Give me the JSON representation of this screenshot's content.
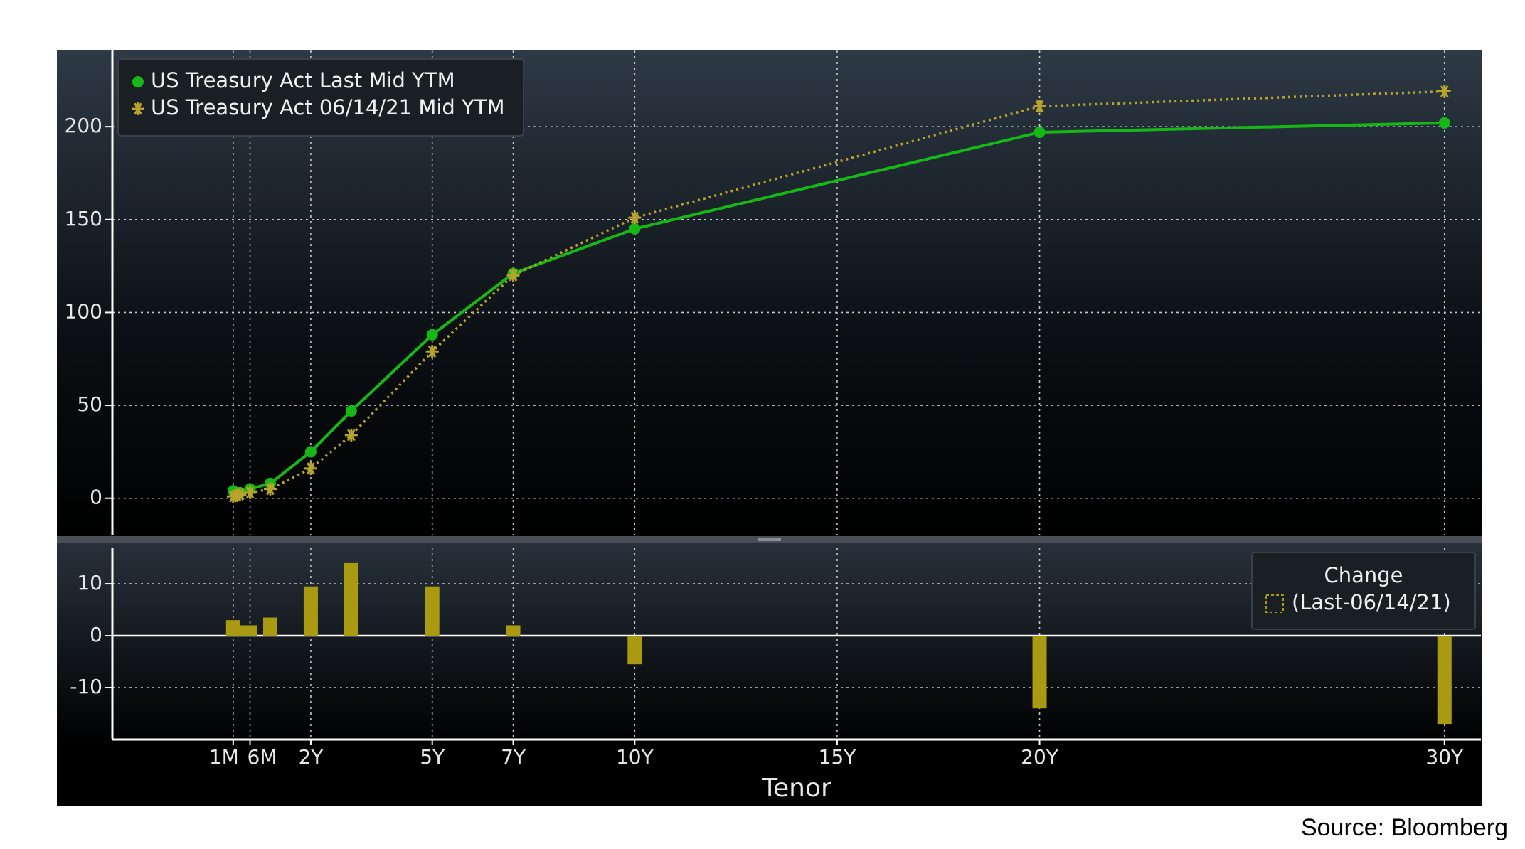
{
  "chart_data": [
    {
      "type": "line",
      "x": [
        0.0833,
        0.1667,
        0.25,
        0.5,
        1,
        2,
        3,
        5,
        7,
        10,
        20,
        30
      ],
      "xlim": [
        -2.9,
        30.9
      ],
      "ylim": [
        -20,
        241
      ],
      "yticks": [
        0,
        50,
        100,
        150,
        200
      ],
      "grid": true,
      "legend": "top-left",
      "series": [
        {
          "name": "US Treasury Act Last Mid YTM",
          "color": "#16b816",
          "marker": "circle",
          "values": [
            4,
            3,
            3,
            5,
            8,
            25,
            47,
            88,
            121,
            145,
            197,
            202
          ]
        },
        {
          "name": "US Treasury Act 06/14/21 Mid YTM",
          "color": "#b8a32c",
          "marker": "asterisk",
          "values": [
            1,
            1.5,
            2,
            3,
            5,
            16,
            34,
            79,
            120,
            151,
            211,
            219
          ]
        }
      ]
    },
    {
      "type": "bar",
      "x": [
        0.0833,
        0.1667,
        0.25,
        0.5,
        1,
        2,
        3,
        5,
        7,
        10,
        20,
        30
      ],
      "values": [
        3,
        2,
        1.5,
        2,
        3.5,
        9.5,
        14,
        9.5,
        2,
        -5.5,
        -14,
        -17
      ],
      "color": "#aa9a12",
      "legend_title": "Change",
      "legend_label": "(Last-06/14/21)",
      "legend": "top-right",
      "xlim": [
        -2.9,
        30.9
      ],
      "ylim": [
        -20,
        17
      ],
      "yticks": [
        -10,
        0,
        10
      ],
      "grid": true,
      "xlabel": "Tenor",
      "xticks": [
        {
          "value": 0.0833,
          "label": "1M"
        },
        {
          "value": 0.5,
          "label": "6M"
        },
        {
          "value": 2,
          "label": "2Y"
        },
        {
          "value": 5,
          "label": "5Y"
        },
        {
          "value": 7,
          "label": "7Y"
        },
        {
          "value": 10,
          "label": "10Y"
        },
        {
          "value": 15,
          "label": "15Y"
        },
        {
          "value": 20,
          "label": "20Y"
        },
        {
          "value": 30,
          "label": "30Y"
        }
      ]
    }
  ],
  "source": "Source: Bloomberg"
}
